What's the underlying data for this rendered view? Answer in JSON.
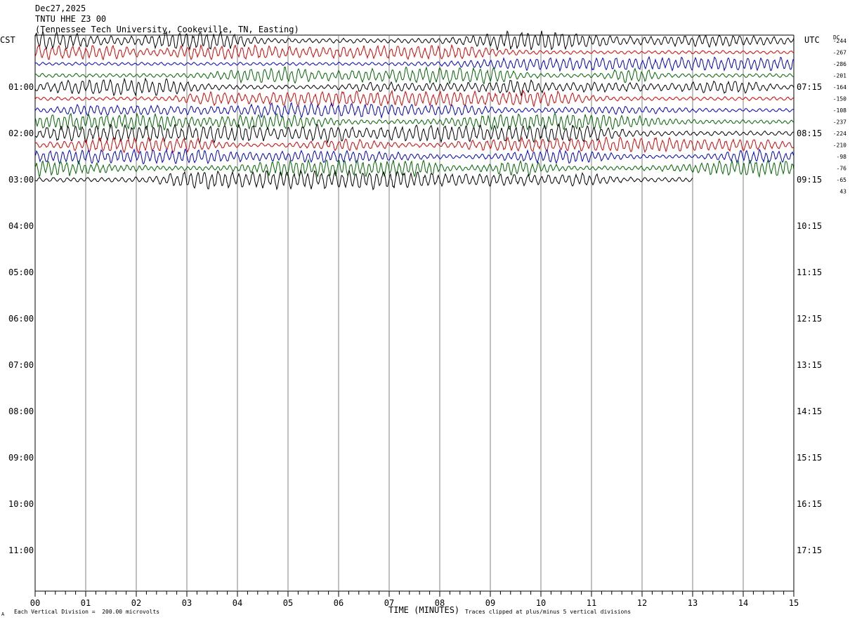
{
  "header": {
    "date": "Dec27,2025",
    "station": "TNTU HHE Z3 00",
    "location": "(Tennessee Tech University, Cookeville, TN, Easting)"
  },
  "left_axis_label": "CST",
  "right_axis_label": "UTC",
  "dc_label": "DC",
  "footer": {
    "scale_note": "Each Vertical Division =  200.00 microvolts",
    "clip_note": "Traces clipped at plus/minus 5 vertical divisions",
    "corner_mark": "A"
  },
  "chart_data": {
    "type": "line",
    "title": "TNTU HHE Z3 00",
    "xlabel": "TIME (MINUTES)",
    "x_range": [
      0,
      15
    ],
    "x_ticks": [
      "00",
      "01",
      "02",
      "03",
      "04",
      "05",
      "06",
      "07",
      "08",
      "09",
      "10",
      "11",
      "12",
      "13",
      "14",
      "15"
    ],
    "cst_hour_labels": [
      "01:00",
      "02:00",
      "03:00",
      "04:00",
      "05:00",
      "06:00",
      "07:00",
      "08:00",
      "09:00",
      "10:00",
      "11:00"
    ],
    "utc_hour_labels": [
      "07:15",
      "08:15",
      "09:15",
      "10:15",
      "11:15",
      "12:15",
      "13:15",
      "14:15",
      "15:15",
      "16:15",
      "17:15"
    ],
    "rows_per_hour": 4,
    "trace_colors": [
      "#000000",
      "#dd0000",
      "#0000cc",
      "#006600"
    ],
    "dc_offsets": [
      "-244",
      "-267",
      "-286",
      "-201",
      "-164",
      "-150",
      "-108",
      "-237",
      "-224",
      "-210",
      "-98",
      "-76",
      "-65",
      "43"
    ],
    "trace_amplitudes": [
      1.0,
      0.75,
      0.7,
      0.85,
      0.9,
      0.8,
      0.75,
      0.85,
      0.95,
      0.8,
      0.75,
      0.9,
      1.0,
      0.85
    ],
    "last_trace_end_minute": 13.0,
    "grid": true
  }
}
